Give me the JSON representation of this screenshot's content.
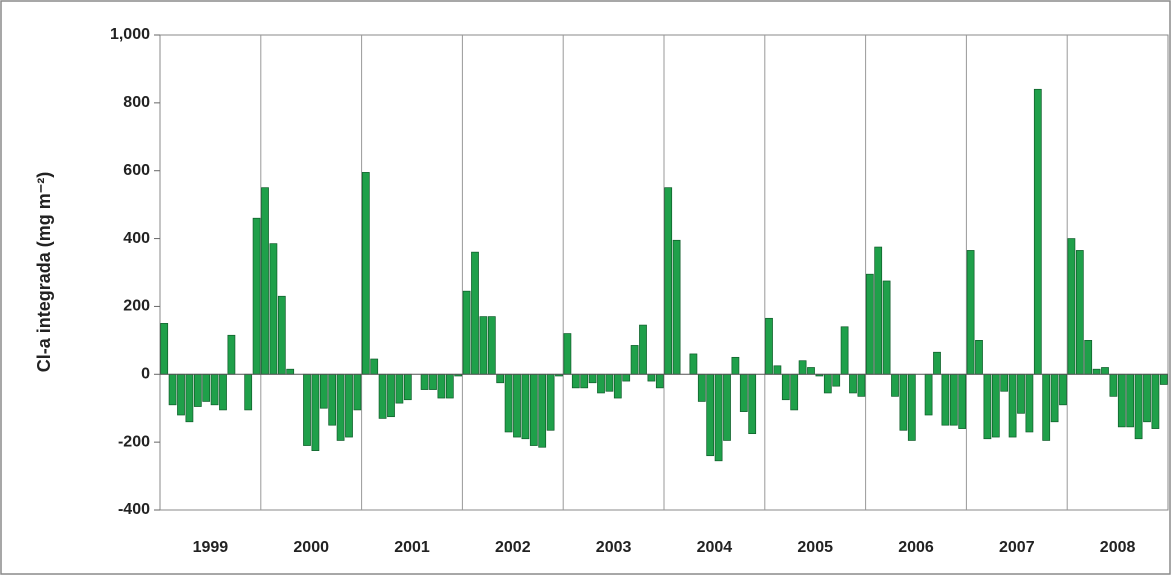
{
  "chart_data": {
    "type": "bar",
    "y_label": "Cl-a integrada (mg m⁻²)",
    "color": "#1fa04a",
    "ylim": [
      -400,
      1000
    ],
    "yticks": [
      -400,
      -200,
      0,
      200,
      400,
      600,
      800,
      {
        "value": 1000,
        "label": "1,000"
      }
    ],
    "grid": false,
    "categories": [
      "1999",
      null,
      null,
      null,
      null,
      null,
      null,
      null,
      null,
      null,
      null,
      null,
      "2000",
      null,
      null,
      null,
      null,
      null,
      null,
      null,
      null,
      null,
      null,
      null,
      "2001",
      null,
      null,
      null,
      null,
      null,
      null,
      null,
      null,
      null,
      null,
      null,
      "2002",
      null,
      null,
      null,
      null,
      null,
      null,
      null,
      null,
      null,
      null,
      null,
      "2003",
      null,
      null,
      null,
      null,
      null,
      null,
      null,
      null,
      null,
      null,
      null,
      "2004",
      null,
      null,
      null,
      null,
      null,
      null,
      null,
      null,
      null,
      null,
      null,
      "2005",
      null,
      null,
      null,
      null,
      null,
      null,
      null,
      null,
      null,
      null,
      null,
      "2006",
      null,
      null,
      null,
      null,
      null,
      null,
      null,
      null,
      null,
      null,
      null,
      "2007",
      null,
      null,
      null,
      null,
      null,
      null,
      null,
      null,
      null,
      null,
      null,
      "2008",
      null,
      null,
      null,
      null,
      null,
      null,
      null,
      null,
      null,
      null,
      null
    ],
    "values": [
      150,
      -90,
      -120,
      -140,
      -95,
      -80,
      -90,
      -105,
      115,
      0,
      -105,
      460,
      550,
      385,
      230,
      15,
      0,
      -210,
      -225,
      -100,
      -150,
      -195,
      -185,
      -105,
      595,
      45,
      -130,
      -125,
      -85,
      -75,
      0,
      -45,
      -45,
      -70,
      -70,
      -5,
      245,
      360,
      170,
      170,
      -25,
      -170,
      -185,
      -190,
      -210,
      -215,
      -165,
      -5,
      120,
      -40,
      -40,
      -25,
      -55,
      -50,
      -70,
      -20,
      85,
      145,
      -20,
      -40,
      550,
      395,
      0,
      60,
      -80,
      -240,
      -255,
      -195,
      50,
      -110,
      -175,
      0,
      165,
      25,
      -75,
      -105,
      40,
      20,
      -5,
      -55,
      -35,
      140,
      -55,
      -65,
      295,
      375,
      275,
      -65,
      -165,
      -195,
      0,
      -120,
      65,
      -150,
      -150,
      -160,
      365,
      100,
      -190,
      -185,
      -50,
      -185,
      -115,
      -170,
      840,
      -195,
      -140,
      -90,
      400,
      365,
      100,
      15,
      20,
      -65,
      -155,
      -155,
      -190,
      -140,
      -160,
      -30
    ]
  }
}
